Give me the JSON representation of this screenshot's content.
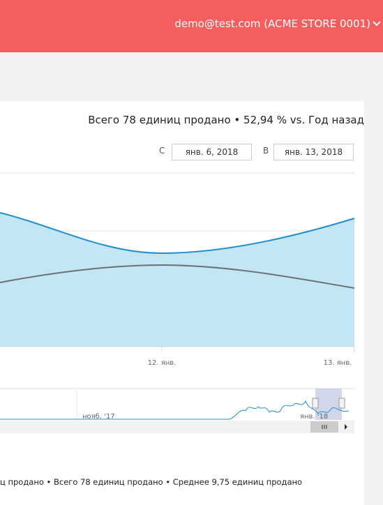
{
  "header": {
    "account": "demo@test.com (ACME STORE 0001)"
  },
  "chart": {
    "title": "Всего 78 единиц продано • 52,94 % vs. Год назад",
    "from_label": "С",
    "from": "янв. 6, 2018",
    "to_label": "В",
    "to": "янв. 13, 2018",
    "x_labels": [
      "12. янв.",
      "13. янв."
    ],
    "navigator_labels": [
      "нояб. '17",
      "янв. '18"
    ]
  },
  "footer": {
    "summary": "ц продано • Всего 78 единиц продано • Среднее 9,75 единиц продано"
  }
}
